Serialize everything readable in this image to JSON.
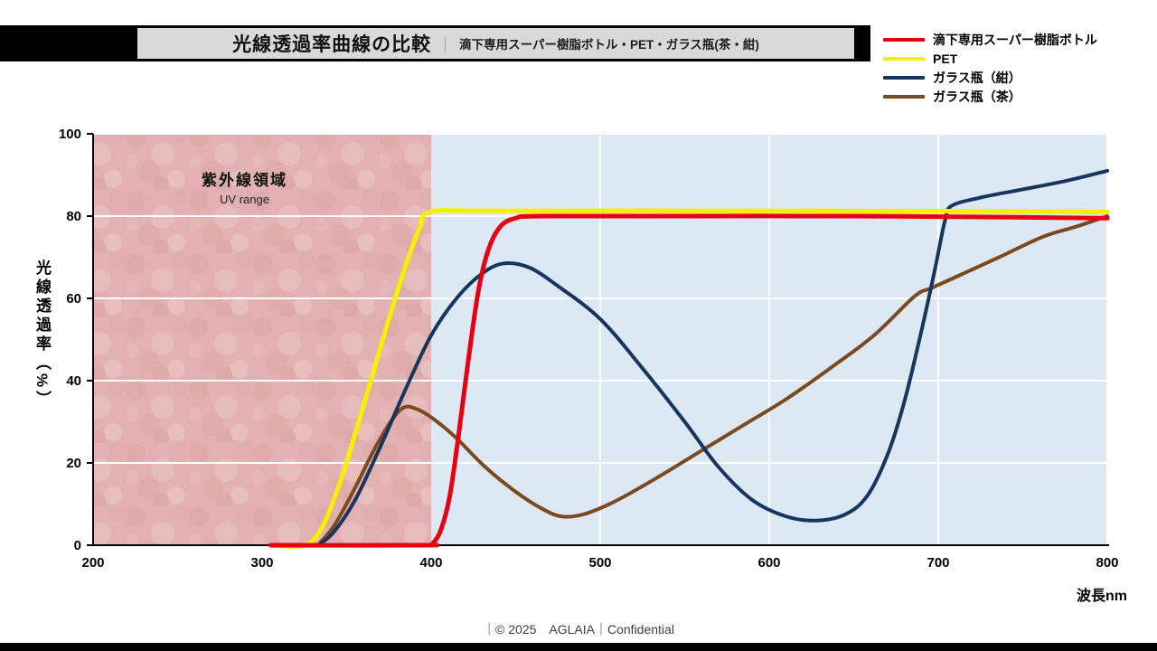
{
  "page": {
    "title_main": "光線透過率曲線の比較",
    "title_separator": "｜",
    "title_sub": "滴下専用スーパー樹脂ボトル・PET・ガラス瓶(茶・紺)",
    "footer": "｜© 2025　AGLAIA｜Confidential"
  },
  "chart_data": {
    "type": "line",
    "title": "光線透過率曲線の比較",
    "xlabel": "波長nm",
    "ylabel": "光線透過率（%）",
    "xlim": [
      200,
      800
    ],
    "ylim": [
      0,
      100
    ],
    "x_ticks": [
      200,
      300,
      400,
      500,
      600,
      700,
      800
    ],
    "y_ticks": [
      0,
      20,
      40,
      60,
      80,
      100
    ],
    "grid": true,
    "gridline_color": "#ffffff",
    "legend_position": "top-right",
    "regions": [
      {
        "label": "紫外線領域",
        "sublabel": "UV range",
        "x_start": 200,
        "x_end": 400,
        "color": "#e3b1b1"
      },
      {
        "label": "",
        "sublabel": "",
        "x_start": 400,
        "x_end": 800,
        "color": "#dce8f4"
      }
    ],
    "series": [
      {
        "name": "滴下専用スーパー樹脂ボトル",
        "color": "#e60012",
        "width": 5,
        "points": [
          [
            305,
            0
          ],
          [
            395,
            0
          ],
          [
            401,
            0.5
          ],
          [
            406,
            4
          ],
          [
            411,
            12
          ],
          [
            416,
            26
          ],
          [
            422,
            45
          ],
          [
            428,
            62
          ],
          [
            434,
            72
          ],
          [
            441,
            77.5
          ],
          [
            450,
            79.5
          ],
          [
            465,
            80
          ],
          [
            550,
            80
          ],
          [
            650,
            80
          ],
          [
            720,
            79.8
          ],
          [
            800,
            79.5
          ]
        ]
      },
      {
        "name": "PET",
        "color": "#f7ef00",
        "width": 5,
        "points": [
          [
            305,
            0
          ],
          [
            325,
            0
          ],
          [
            335,
            4
          ],
          [
            345,
            14
          ],
          [
            355,
            27
          ],
          [
            365,
            41
          ],
          [
            375,
            55
          ],
          [
            385,
            68
          ],
          [
            393,
            77
          ],
          [
            399,
            81
          ],
          [
            430,
            81.3
          ],
          [
            550,
            81.3
          ],
          [
            700,
            81.2
          ],
          [
            800,
            81
          ]
        ]
      },
      {
        "name": "ガラス瓶（紺）",
        "color": "#16365f",
        "width": 4,
        "points": [
          [
            333,
            0
          ],
          [
            342,
            3
          ],
          [
            355,
            11
          ],
          [
            370,
            24
          ],
          [
            385,
            38
          ],
          [
            400,
            51
          ],
          [
            415,
            60
          ],
          [
            430,
            66
          ],
          [
            443,
            68.5
          ],
          [
            458,
            67.5
          ],
          [
            475,
            63
          ],
          [
            500,
            55
          ],
          [
            525,
            43
          ],
          [
            550,
            30
          ],
          [
            570,
            19
          ],
          [
            590,
            11
          ],
          [
            610,
            7
          ],
          [
            628,
            6
          ],
          [
            645,
            7.5
          ],
          [
            658,
            12
          ],
          [
            670,
            22
          ],
          [
            680,
            35
          ],
          [
            690,
            52
          ],
          [
            698,
            67
          ],
          [
            704,
            79
          ],
          [
            708,
            82.5
          ],
          [
            725,
            84.5
          ],
          [
            750,
            86.5
          ],
          [
            775,
            88.5
          ],
          [
            800,
            91
          ]
        ]
      },
      {
        "name": "ガラス瓶（茶）",
        "color": "#7c4a1e",
        "width": 4,
        "points": [
          [
            333,
            0
          ],
          [
            343,
            5
          ],
          [
            355,
            14
          ],
          [
            366,
            23
          ],
          [
            376,
            30
          ],
          [
            384,
            33.5
          ],
          [
            392,
            33
          ],
          [
            402,
            30.5
          ],
          [
            415,
            26
          ],
          [
            432,
            19
          ],
          [
            450,
            13
          ],
          [
            465,
            9
          ],
          [
            477,
            7
          ],
          [
            490,
            7.5
          ],
          [
            508,
            10.5
          ],
          [
            532,
            16
          ],
          [
            558,
            22.5
          ],
          [
            584,
            29
          ],
          [
            610,
            35.5
          ],
          [
            636,
            43
          ],
          [
            662,
            51
          ],
          [
            686,
            60.5
          ],
          [
            696,
            62.5
          ],
          [
            712,
            65.5
          ],
          [
            736,
            70
          ],
          [
            762,
            75
          ],
          [
            782,
            77.5
          ],
          [
            800,
            80
          ]
        ]
      }
    ]
  }
}
